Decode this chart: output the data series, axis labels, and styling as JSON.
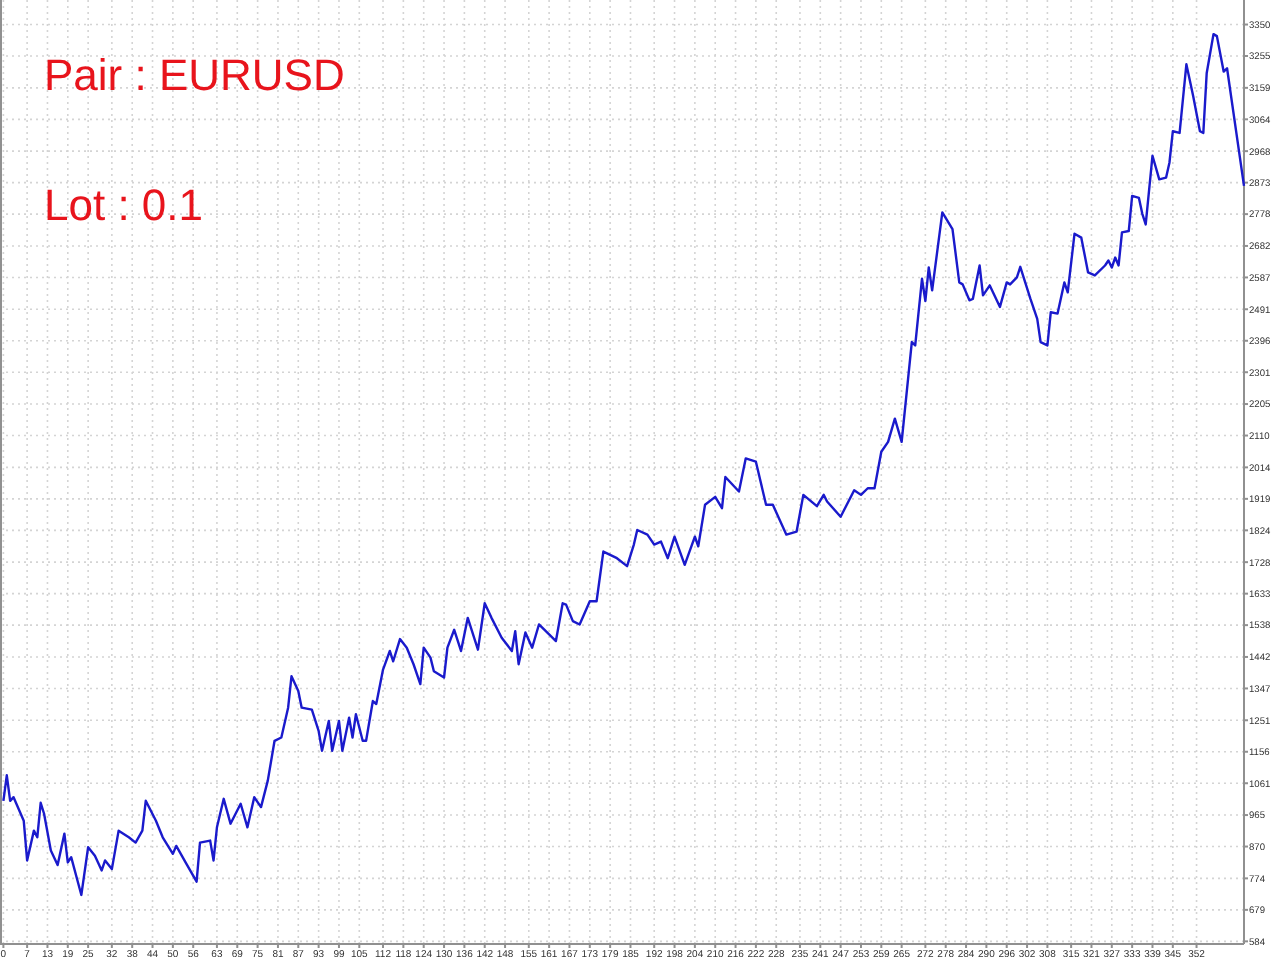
{
  "chart_data": {
    "type": "line",
    "annotations": [
      "Pair : EURUSD",
      "Lot : 0.1"
    ],
    "xlim": [
      -1,
      366
    ],
    "ylim": [
      576,
      3424
    ],
    "xticks": [
      0,
      7,
      13,
      19,
      25,
      32,
      38,
      44,
      50,
      56,
      63,
      69,
      75,
      81,
      87,
      93,
      99,
      105,
      112,
      118,
      124,
      130,
      136,
      142,
      148,
      155,
      161,
      167,
      173,
      179,
      185,
      192,
      198,
      204,
      210,
      216,
      222,
      228,
      235,
      241,
      247,
      253,
      259,
      265,
      272,
      278,
      284,
      290,
      296,
      302,
      308,
      315,
      321,
      327,
      333,
      339,
      345,
      352
    ],
    "yticks": [
      584,
      679,
      774,
      870,
      965,
      1061,
      1156,
      1251,
      1347,
      1442,
      1538,
      1633,
      1728,
      1824,
      1919,
      2014,
      2110,
      2205,
      2301,
      2396,
      2491,
      2587,
      2682,
      2778,
      2873,
      2968,
      3064,
      3159,
      3255,
      3350
    ],
    "grid": true,
    "line_style": "solid",
    "series": [
      {
        "color": "#1a1acc",
        "x": [
          0,
          1,
          2,
          3,
          6,
          7,
          9,
          10,
          11,
          12,
          14,
          16,
          18,
          19,
          20,
          23,
          25,
          27,
          29,
          30,
          32,
          34,
          37,
          39,
          41,
          42,
          45,
          47,
          50,
          51,
          54,
          57,
          58,
          61,
          62,
          63,
          65,
          67,
          70,
          72,
          74,
          76,
          78,
          80,
          82,
          84,
          85,
          87,
          88,
          91,
          93,
          94,
          96,
          97,
          99,
          100,
          102,
          103,
          104,
          106,
          107,
          109,
          110,
          112,
          114,
          115,
          117,
          119,
          121,
          123,
          124,
          126,
          127,
          130,
          131,
          133,
          135,
          137,
          140,
          142,
          144,
          147,
          150,
          151,
          152,
          154,
          156,
          158,
          161,
          163,
          165,
          166,
          168,
          170,
          173,
          175,
          177,
          181,
          184,
          186,
          187,
          190,
          192,
          194,
          196,
          198,
          201,
          204,
          205,
          207,
          210,
          212,
          213,
          217,
          219,
          222,
          225,
          227,
          231,
          234,
          236,
          240,
          242,
          243,
          247,
          251,
          253,
          255,
          257,
          259,
          261,
          263,
          265,
          268,
          269,
          271,
          272,
          273,
          274,
          277,
          280,
          282,
          283,
          285,
          286,
          288,
          289,
          291,
          294,
          296,
          297,
          299,
          300,
          303,
          305,
          306,
          308,
          309,
          311,
          313,
          314,
          316,
          318,
          320,
          322,
          325,
          326,
          327,
          328,
          329,
          330,
          332,
          333,
          335,
          336,
          337,
          339,
          341,
          343,
          344,
          345,
          347,
          349,
          351,
          353,
          354,
          355,
          357,
          358,
          360,
          361,
          366
        ],
        "values": [
          1008,
          1085,
          1008,
          1019,
          948,
          828,
          918,
          898,
          1002,
          969,
          858,
          814,
          909,
          822,
          838,
          724,
          868,
          842,
          798,
          828,
          802,
          918,
          898,
          882,
          918,
          1008,
          948,
          898,
          848,
          872,
          818,
          764,
          882,
          888,
          828,
          928,
          1014,
          939,
          999,
          928,
          1019,
          989,
          1069,
          1189,
          1199,
          1289,
          1384,
          1339,
          1289,
          1283,
          1219,
          1159,
          1249,
          1159,
          1249,
          1159,
          1259,
          1199,
          1269,
          1189,
          1189,
          1309,
          1300,
          1404,
          1460,
          1429,
          1496,
          1470,
          1420,
          1360,
          1470,
          1440,
          1399,
          1380,
          1470,
          1524,
          1460,
          1560,
          1464,
          1604,
          1560,
          1500,
          1460,
          1520,
          1420,
          1516,
          1470,
          1540,
          1510,
          1490,
          1604,
          1600,
          1550,
          1540,
          1610,
          1610,
          1760,
          1740,
          1716,
          1781,
          1825,
          1811,
          1781,
          1790,
          1740,
          1805,
          1720,
          1805,
          1776,
          1901,
          1925,
          1891,
          1985,
          1941,
          2041,
          2031,
          1901,
          1901,
          1811,
          1820,
          1931,
          1897,
          1931,
          1911,
          1865,
          1945,
          1931,
          1951,
          1951,
          2061,
          2091,
          2161,
          2091,
          2392,
          2382,
          2583,
          2516,
          2617,
          2548,
          2783,
          2733,
          2572,
          2566,
          2518,
          2522,
          2623,
          2533,
          2563,
          2498,
          2572,
          2566,
          2587,
          2619,
          2522,
          2462,
          2392,
          2382,
          2482,
          2478,
          2572,
          2542,
          2719,
          2707,
          2602,
          2593,
          2623,
          2638,
          2617,
          2647,
          2623,
          2723,
          2727,
          2833,
          2827,
          2779,
          2747,
          2954,
          2883,
          2888,
          2933,
          3028,
          3023,
          3230,
          3134,
          3028,
          3023,
          3204,
          3321,
          3315,
          3208,
          3218,
          2863
        ]
      }
    ]
  }
}
